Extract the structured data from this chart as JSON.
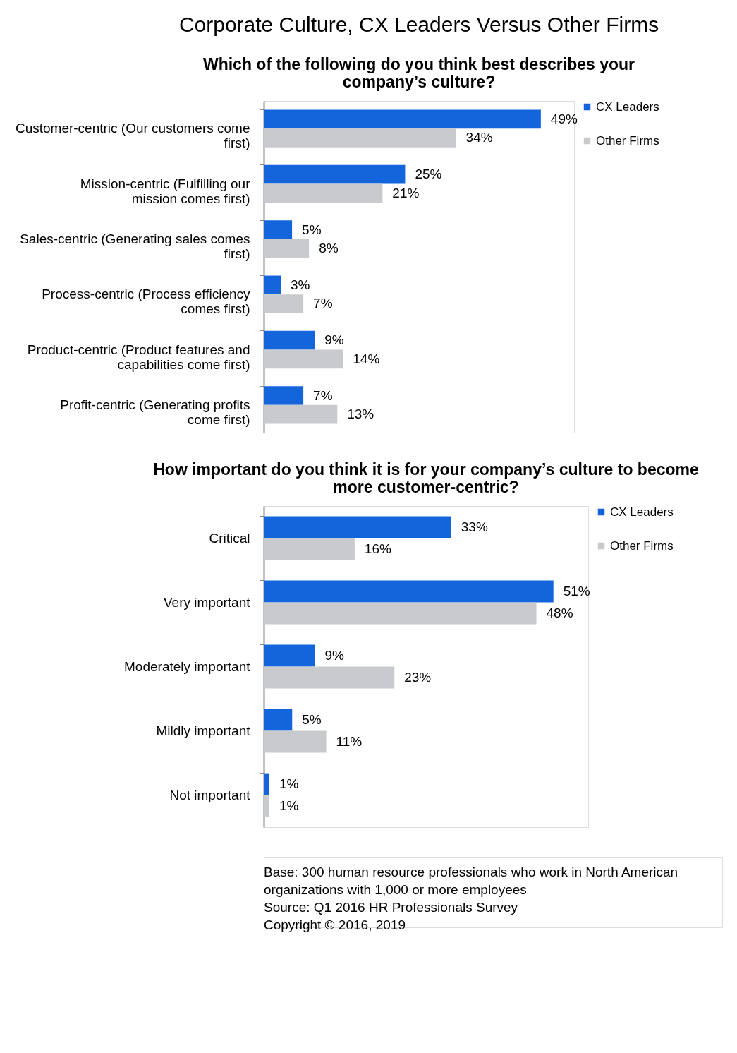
{
  "chart_data": [
    {
      "type": "bar",
      "orientation": "horizontal",
      "title": "Corporate Culture, CX Leaders Versus Other Firms",
      "subtitle": "Which of the following do you think best describes your company’s culture?",
      "categories": [
        "Customer-centric (Our customers come first)",
        "Mission-centric (Fulfilling our mission comes first)",
        "Sales-centric (Generating sales comes first)",
        "Process-centric (Process efficiency comes first)",
        "Product-centric (Product features and capabilities come first)",
        "Profit-centric (Generating profits come first)"
      ],
      "series": [
        {
          "name": "CX Leaders",
          "color": "#1464dc",
          "values": [
            49,
            25,
            5,
            3,
            9,
            7
          ],
          "value_labels": [
            "49%",
            "25%",
            "5%",
            "3%",
            "9%",
            "7%"
          ]
        },
        {
          "name": "Other Firms",
          "color": "#c8cacd",
          "values": [
            34,
            21,
            8,
            7,
            14,
            13
          ],
          "value_labels": [
            "34%",
            "21%",
            "8%",
            "7%",
            "14%",
            "13%"
          ]
        }
      ],
      "legend": "right"
    },
    {
      "type": "bar",
      "orientation": "horizontal",
      "title": "How important do you think it is for your company’s culture to become more customer-centric?",
      "categories": [
        "Critical",
        "Very important",
        "Moderately important",
        "Mildly important",
        "Not important"
      ],
      "series": [
        {
          "name": "CX Leaders",
          "color": "#1464dc",
          "values": [
            33,
            51,
            9,
            5,
            1
          ],
          "value_labels": [
            "33%",
            "51%",
            "9%",
            "5%",
            "1%"
          ]
        },
        {
          "name": "Other Firms",
          "color": "#c8cacd",
          "values": [
            16,
            48,
            23,
            11,
            1
          ],
          "value_labels": [
            "16%",
            "48%",
            "23%",
            "11%",
            "1%"
          ]
        }
      ],
      "legend": "right",
      "annotations": [
        "Base:   300 human resource professionals who work in North American organizations with 1,000 or more employees",
        "Source:   Q1 2016 HR Professionals Survey",
        "Copyright © 2016, 2019"
      ]
    }
  ]
}
